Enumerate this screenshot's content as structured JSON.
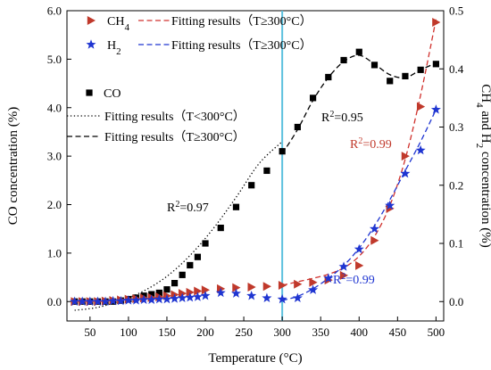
{
  "chart_data": {
    "type": "scatter",
    "xlabel": "Temperature (°C)",
    "ylabel_left": "CO concentration (%)",
    "ylabel_right": {
      "pre": "CH",
      "sub1": "4",
      "mid": " and H",
      "sub2": "2",
      "post": " concentration (%)"
    },
    "xlim": [
      20,
      510
    ],
    "ylim_left": [
      -0.4,
      6.0
    ],
    "ylim_right": [
      -0.0333,
      0.5
    ],
    "x_ticks": [
      50,
      100,
      150,
      200,
      250,
      300,
      350,
      400,
      450,
      500
    ],
    "y_left_ticks": [
      "0.0",
      "1.0",
      "2.0",
      "3.0",
      "4.0",
      "5.0",
      "6.0"
    ],
    "y_right_ticks": [
      "0.0",
      "0.1",
      "0.2",
      "0.3",
      "0.4",
      "0.5"
    ],
    "grid": false,
    "vline_x": 300,
    "vline_color": "#5bc0de",
    "series": [
      {
        "name": "CO",
        "axis": "left",
        "marker": "square",
        "color": "#000000",
        "x": [
          30,
          40,
          50,
          60,
          70,
          80,
          90,
          100,
          110,
          120,
          130,
          140,
          150,
          160,
          170,
          180,
          190,
          200,
          220,
          240,
          260,
          280,
          300,
          320,
          340,
          360,
          380,
          400,
          420,
          440,
          460,
          480,
          500
        ],
        "y": [
          0.0,
          0.0,
          0.0,
          0.0,
          0.0,
          0.0,
          0.02,
          0.05,
          0.08,
          0.12,
          0.15,
          0.18,
          0.25,
          0.38,
          0.55,
          0.75,
          0.92,
          1.2,
          1.52,
          1.95,
          2.4,
          2.7,
          3.1,
          3.6,
          4.2,
          4.63,
          4.98,
          5.15,
          4.88,
          4.55,
          4.65,
          4.78,
          4.9
        ]
      },
      {
        "name": {
          "base": "CH",
          "sub": "4"
        },
        "axis": "right",
        "marker": "triangle-right",
        "color": "#c0392b",
        "x": [
          30,
          40,
          50,
          60,
          70,
          80,
          90,
          100,
          110,
          120,
          130,
          140,
          150,
          160,
          170,
          180,
          190,
          200,
          220,
          240,
          260,
          280,
          300,
          320,
          340,
          360,
          380,
          400,
          420,
          440,
          460,
          480,
          500
        ],
        "y": [
          0.0,
          0.0,
          0.0,
          0.0,
          0.001,
          0.002,
          0.003,
          0.004,
          0.005,
          0.006,
          0.007,
          0.008,
          0.01,
          0.012,
          0.014,
          0.016,
          0.018,
          0.02,
          0.022,
          0.024,
          0.025,
          0.026,
          0.028,
          0.03,
          0.033,
          0.037,
          0.045,
          0.062,
          0.105,
          0.16,
          0.25,
          0.335,
          0.48
        ]
      },
      {
        "name": {
          "base": "H",
          "sub": "2"
        },
        "axis": "right",
        "marker": "star",
        "color": "#1f35d1",
        "x": [
          30,
          40,
          50,
          60,
          70,
          80,
          90,
          100,
          110,
          120,
          130,
          140,
          150,
          160,
          170,
          180,
          190,
          200,
          220,
          240,
          260,
          280,
          300,
          320,
          340,
          360,
          380,
          400,
          420,
          440,
          460,
          480,
          500
        ],
        "y": [
          0.0,
          0.0,
          0.0,
          0.0,
          0.0,
          0.001,
          0.001,
          0.002,
          0.002,
          0.003,
          0.003,
          0.004,
          0.004,
          0.005,
          0.006,
          0.007,
          0.008,
          0.01,
          0.015,
          0.014,
          0.01,
          0.006,
          0.004,
          0.006,
          0.02,
          0.04,
          0.06,
          0.09,
          0.125,
          0.165,
          0.22,
          0.26,
          0.33
        ]
      }
    ],
    "fits": [
      {
        "label": "Fitting results（T<300°C）",
        "axis": "left",
        "style": "dotted",
        "color": "#000000",
        "x": [
          30,
          60,
          90,
          120,
          150,
          180,
          210,
          240,
          270,
          300
        ],
        "y": [
          -0.18,
          -0.12,
          0.02,
          0.22,
          0.52,
          0.95,
          1.5,
          2.15,
          2.85,
          3.3
        ]
      },
      {
        "label": "Fitting results（T≥300°C）",
        "axis": "left",
        "style": "dashed",
        "color": "#000000",
        "x": [
          300,
          320,
          340,
          360,
          380,
          400,
          420,
          440,
          460,
          480,
          500
        ],
        "y": [
          3.05,
          3.55,
          4.15,
          4.62,
          4.95,
          5.08,
          4.9,
          4.68,
          4.62,
          4.78,
          4.92
        ]
      },
      {
        "label": "Fitting results（T≥300°C）",
        "axis": "right",
        "style": "dashed",
        "color": "#d0312d",
        "x": [
          300,
          320,
          340,
          360,
          380,
          400,
          420,
          440,
          460,
          480,
          500
        ],
        "y": [
          0.028,
          0.034,
          0.04,
          0.047,
          0.058,
          0.078,
          0.112,
          0.165,
          0.245,
          0.355,
          0.485
        ]
      },
      {
        "label": "Fitting results（T≥300°C）",
        "axis": "right",
        "style": "dashed",
        "color": "#1f35d1",
        "x": [
          300,
          320,
          340,
          360,
          380,
          400,
          420,
          440,
          460,
          480,
          500
        ],
        "y": [
          0.002,
          0.009,
          0.022,
          0.04,
          0.062,
          0.092,
          0.13,
          0.175,
          0.225,
          0.275,
          0.33
        ]
      }
    ],
    "legend_top": [
      {
        "series": 1,
        "fit": 2
      },
      {
        "series": 2,
        "fit": 3
      }
    ],
    "legend_mid": [
      {
        "series": 0
      },
      {
        "fit": 0
      },
      {
        "fit": 1
      }
    ],
    "annotations": [
      {
        "base": "R",
        "sup": "2",
        "rest": "=0.95",
        "color": "#000000"
      },
      {
        "base": "R",
        "sup": "2",
        "rest": "=0.97",
        "color": "#000000"
      },
      {
        "base": "R",
        "sup": "2",
        "rest": "=0.99",
        "color": "#c0392b"
      },
      {
        "base": "R",
        "sup": "2",
        "rest": "=0.99",
        "color": "#1f35d1"
      }
    ]
  }
}
